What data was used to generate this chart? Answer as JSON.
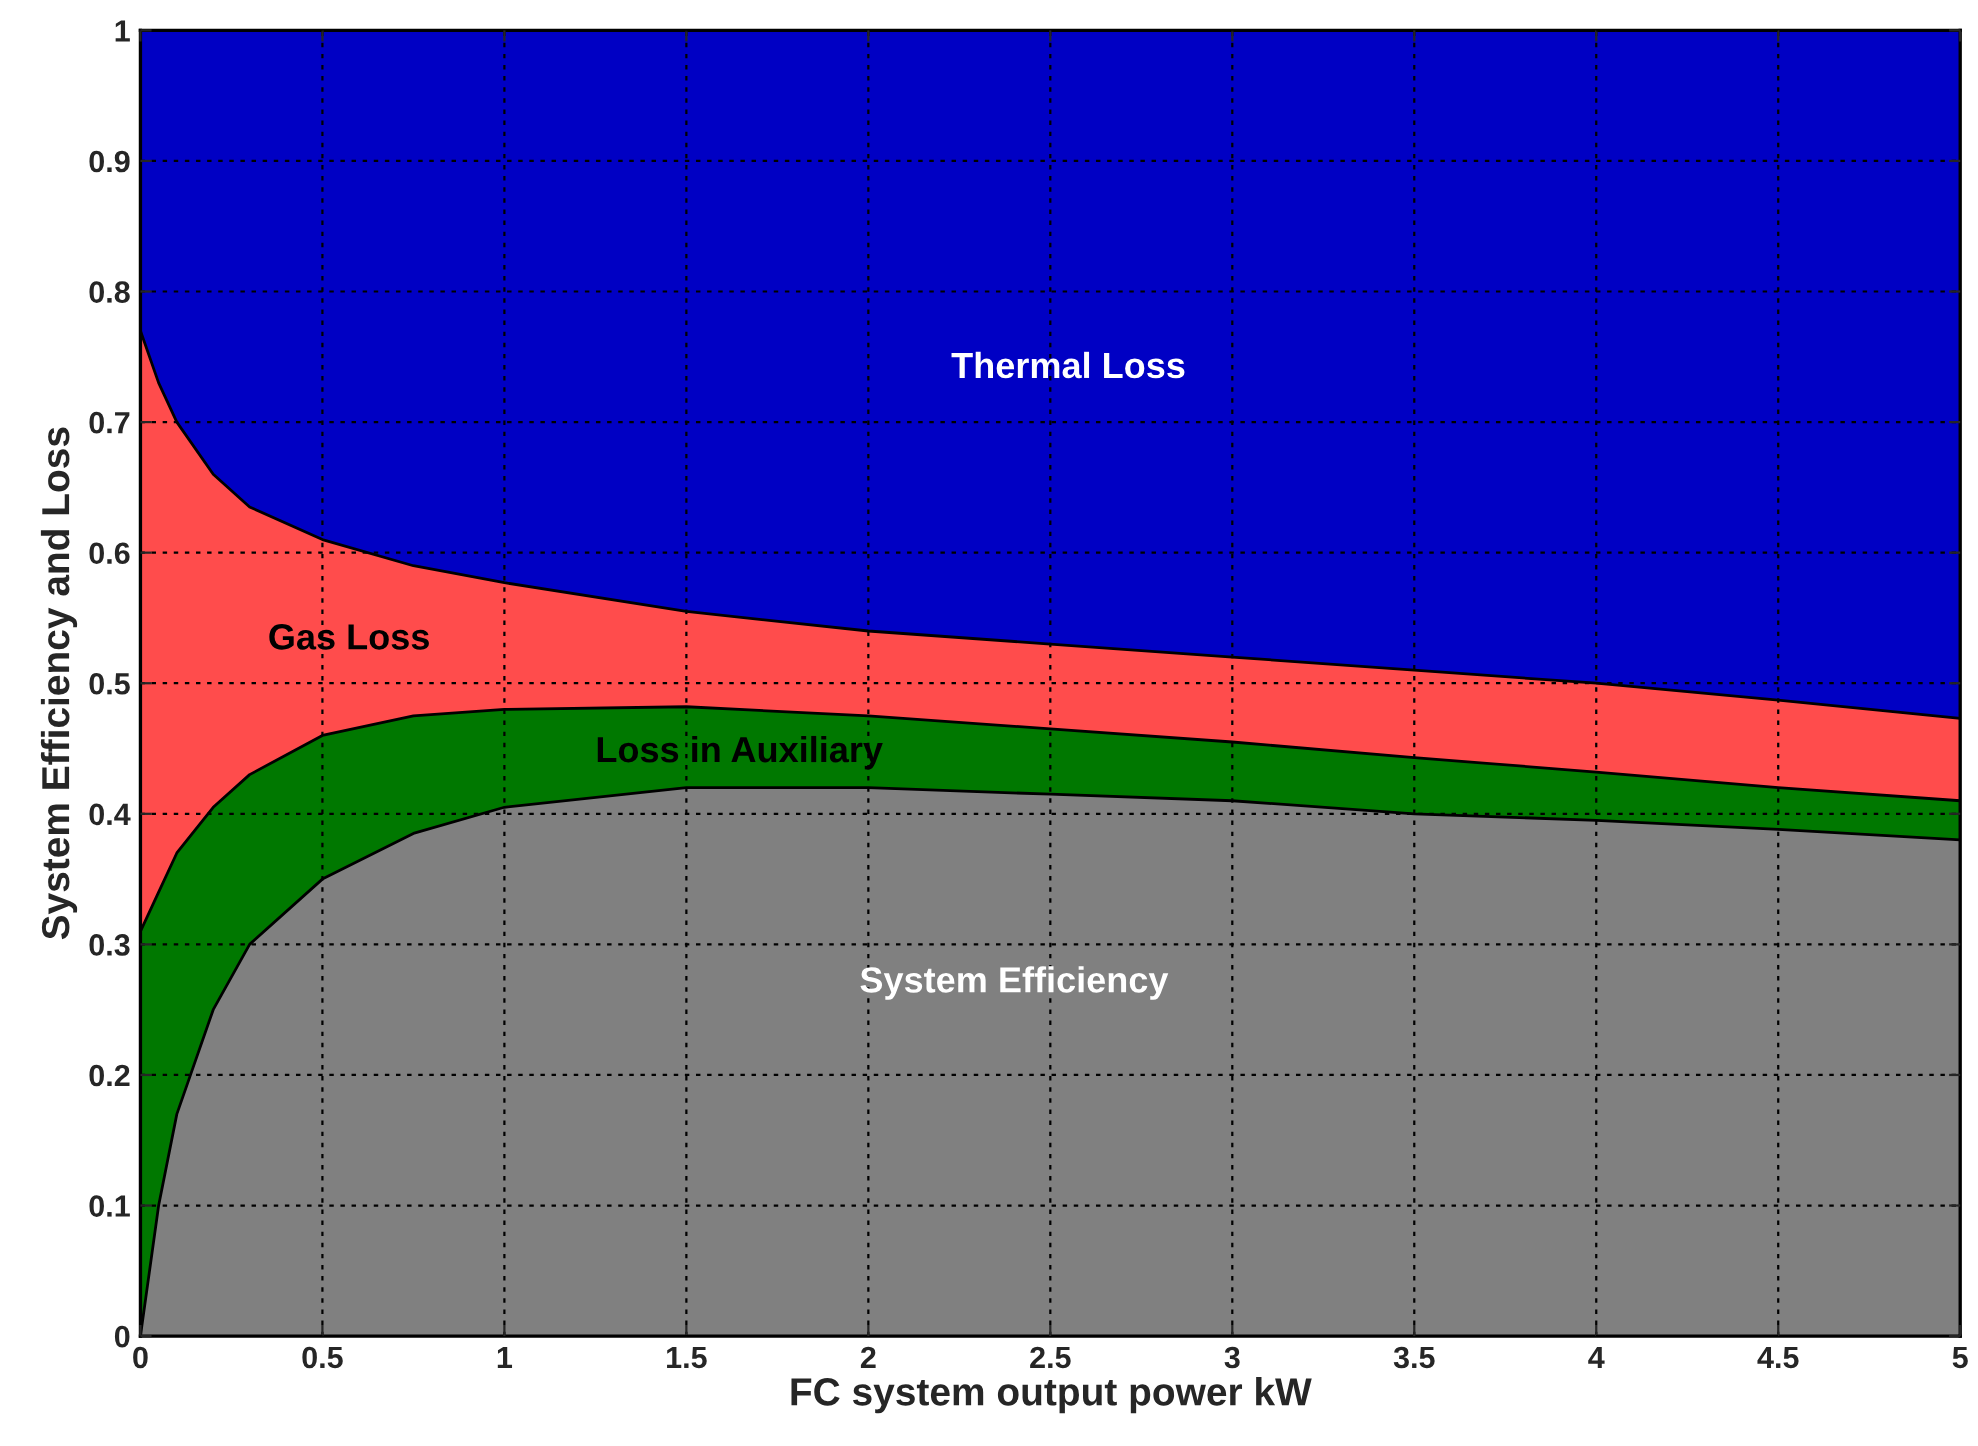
{
  "chart_data": {
    "type": "area",
    "stacked": true,
    "xlabel": "FC system output power kW",
    "ylabel": "System Efficiency and Loss",
    "x": [
      0,
      0.05,
      0.1,
      0.2,
      0.3,
      0.5,
      0.75,
      1,
      1.5,
      2,
      2.5,
      3,
      3.5,
      4,
      4.5,
      5
    ],
    "series": [
      {
        "name": "System Efficiency",
        "color": "#808080",
        "values": [
          0,
          0.1,
          0.17,
          0.25,
          0.3,
          0.35,
          0.385,
          0.405,
          0.42,
          0.42,
          0.415,
          0.41,
          0.4,
          0.395,
          0.388,
          0.38
        ]
      },
      {
        "name": "Loss in Auxiliary",
        "color": "#007800",
        "values": [
          0.31,
          0.24,
          0.2,
          0.155,
          0.13,
          0.11,
          0.09,
          0.075,
          0.062,
          0.055,
          0.05,
          0.045,
          0.043,
          0.037,
          0.032,
          0.03
        ]
      },
      {
        "name": "Gas Loss",
        "color": "#ff4c4c",
        "values": [
          0.46,
          0.39,
          0.33,
          0.255,
          0.205,
          0.15,
          0.115,
          0.097,
          0.073,
          0.065,
          0.065,
          0.065,
          0.067,
          0.068,
          0.067,
          0.063
        ]
      },
      {
        "name": "Thermal Loss",
        "color": "#0000c4",
        "values": [
          0.23,
          0.27,
          0.3,
          0.34,
          0.365,
          0.39,
          0.41,
          0.423,
          0.445,
          0.46,
          0.47,
          0.48,
          0.49,
          0.5,
          0.513,
          0.527
        ]
      }
    ],
    "xlim": [
      0,
      5
    ],
    "xticks": [
      0,
      0.5,
      1,
      1.5,
      2,
      2.5,
      3,
      3.5,
      4,
      4.5,
      5
    ],
    "ylim": [
      0,
      1
    ],
    "yticks": [
      0,
      0.1,
      0.2,
      0.3,
      0.4,
      0.5,
      0.6,
      0.7,
      0.8,
      0.9,
      1
    ],
    "grid": true,
    "legend": false
  }
}
